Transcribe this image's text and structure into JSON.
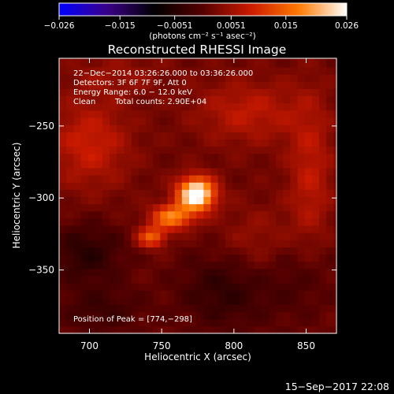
{
  "colorbar": {
    "ticks": [
      "−0.026",
      "−0.015",
      "−0.0051",
      "0.0051",
      "0.015",
      "0.026"
    ],
    "tick_values": [
      -0.026,
      -0.015,
      -0.0051,
      0.0051,
      0.015,
      0.026
    ],
    "range": [
      -0.026,
      0.026
    ],
    "colormap": [
      "#0000ff",
      "#3a0088",
      "#000000",
      "#550000",
      "#cc1a00",
      "#ff7a00",
      "#ffffff"
    ],
    "unit_label": "(photons cm⁻² s⁻¹ asec⁻²)"
  },
  "chart_data": {
    "type": "heatmap",
    "title": "Reconstructed RHESSI Image",
    "xlabel": "Heliocentric X (arcsec)",
    "ylabel": "Heliocentric Y (arcsec)",
    "xlim": [
      679,
      871
    ],
    "ylim": [
      -394,
      -203
    ],
    "x_ticks": [
      "700",
      "750",
      "800",
      "850"
    ],
    "x_tick_values": [
      700,
      750,
      800,
      850
    ],
    "y_ticks": [
      "−250",
      "−300",
      "−350"
    ],
    "y_tick_values": [
      -250,
      -300,
      -350
    ],
    "annotations": [
      "22−Dec−2014 03:26:26.000 to 03:36:26.000",
      "Detectors: 3F 6F 7F 9F, Att 0",
      "Energy Range: 6.0 − 12.0 keV",
      "Clean",
      "Total counts: 2.90E+04"
    ],
    "peak_label": "Position of Peak = [774,−298]",
    "peak": [
      774,
      -298
    ],
    "sources": [
      {
        "x": 774,
        "y": -297,
        "sx": 9,
        "sy": 8,
        "amp": 0.028
      },
      {
        "x": 757,
        "y": -313,
        "sx": 10,
        "sy": 6,
        "amp": 0.016
      },
      {
        "x": 743,
        "y": -327,
        "sx": 7,
        "sy": 5,
        "amp": 0.013
      },
      {
        "x": 700,
        "y": -262,
        "sx": 20,
        "sy": 22,
        "amp": 0.007
      },
      {
        "x": 810,
        "y": -240,
        "sx": 26,
        "sy": 16,
        "amp": 0.006
      },
      {
        "x": 853,
        "y": -285,
        "sx": 11,
        "sy": 40,
        "amp": 0.006
      },
      {
        "x": 820,
        "y": -330,
        "sx": 22,
        "sy": 18,
        "amp": 0.004
      },
      {
        "x": 698,
        "y": -338,
        "sx": 18,
        "sy": 15,
        "amp": -0.006
      },
      {
        "x": 708,
        "y": -378,
        "sx": 22,
        "sy": 12,
        "amp": -0.004
      },
      {
        "x": 793,
        "y": -363,
        "sx": 22,
        "sy": 20,
        "amp": -0.0055
      },
      {
        "x": 845,
        "y": -348,
        "sx": 18,
        "sy": 24,
        "amp": -0.004
      },
      {
        "x": 720,
        "y": -215,
        "sx": 25,
        "sy": 10,
        "amp": 0.003
      }
    ],
    "background": 0.0015
  },
  "footer": {
    "timestamp": "15−Sep−2017 22:08"
  }
}
